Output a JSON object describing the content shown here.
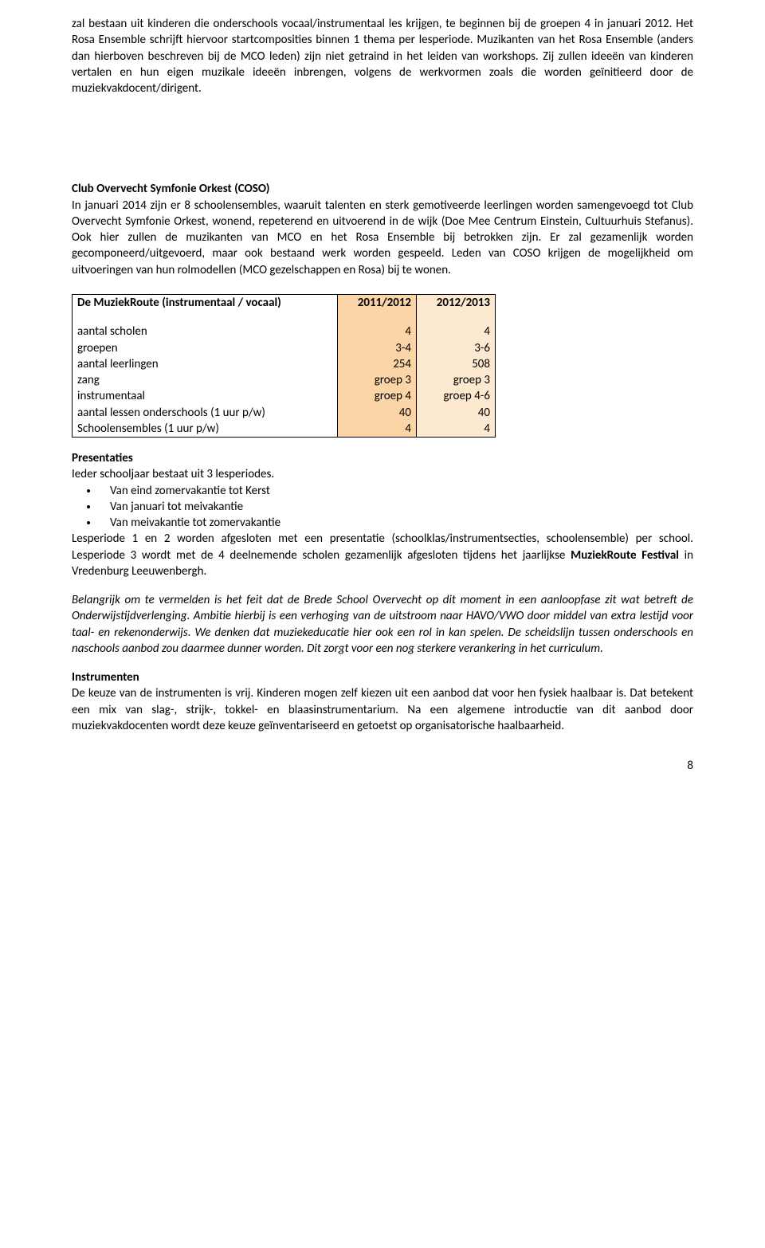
{
  "para_intro": "zal bestaan uit kinderen die onderschools vocaal/instrumentaal les krijgen, te beginnen bij de groepen 4 in januari 2012. Het Rosa Ensemble schrijft hiervoor startcomposities binnen 1 thema per lesperiode. Muzikanten van het Rosa Ensemble (anders dan hierboven beschreven bij de MCO leden) zijn niet getraind in het leiden van workshops. Zij zullen ideeën van kinderen vertalen en hun eigen muzikale ideeën inbrengen, volgens de werkvormen zoals die worden geïnitieerd door de muziekvakdocent/dirigent.",
  "coso_title": "Club Overvecht Symfonie Orkest (COSO)",
  "coso_body": "In januari 2014 zijn er 8 schoolensembles, waaruit talenten en sterk gemotiveerde leerlingen worden samengevoegd tot Club Overvecht Symfonie Orkest, wonend, repeterend en uitvoerend in de wijk (Doe Mee Centrum Einstein, Cultuurhuis Stefanus). Ook hier zullen de muzikanten van MCO en het Rosa Ensemble bij betrokken zijn. Er zal gezamenlijk worden gecomponeerd/uitgevoerd, maar ook bestaand werk worden gespeeld. Leden van COSO krijgen de mogelijkheid om uitvoeringen van hun rolmodellen (MCO gezelschappen en Rosa) bij te wonen.",
  "table": {
    "header_left": "De MuziekRoute (instrumentaal / vocaal)",
    "year1": "2011/2012",
    "year2": "2012/2013",
    "rows": [
      {
        "label": "aantal scholen",
        "y1": "4",
        "y2": "4"
      },
      {
        "label": "groepen",
        "y1": "3-4",
        "y2": "3-6"
      },
      {
        "label": "aantal leerlingen",
        "y1": "254",
        "y2": "508"
      },
      {
        "label": "zang",
        "y1": "groep 3",
        "y2": "groep 3"
      },
      {
        "label": "instrumentaal",
        "y1": "groep 4",
        "y2": "groep 4-6"
      },
      {
        "label": "aantal lessen onderschools (1 uur p/w)",
        "y1": "40",
        "y2": "40"
      },
      {
        "label": "Schoolensembles (1 uur p/w)",
        "y1": "4",
        "y2": "4"
      }
    ],
    "colors": {
      "y1_bg": "#fbd5a7",
      "y2_bg": "#fde9d0",
      "border": "#000000"
    }
  },
  "pres_title": "Presentaties",
  "pres_intro": "Ieder schooljaar bestaat uit 3 lesperiodes.",
  "pres_bullets": [
    "Van eind zomervakantie tot Kerst",
    "Van januari tot meivakantie",
    "Van meivakantie tot zomervakantie"
  ],
  "pres_after_1": "Lesperiode 1 en 2 worden afgesloten met een presentatie (schoolklas/instrumentsecties, schoolensemble) per school. Lesperiode 3 wordt met de 4 deelnemende scholen gezamenlijk afgesloten tijdens het jaarlijkse ",
  "pres_after_bold": "MuziekRoute Festival",
  "pres_after_2": " in Vredenburg Leeuwenbergh.",
  "important_note": "Belangrijk om te vermelden is het feit dat de Brede School Overvecht op dit moment in een aanloopfase zit wat betreft de Onderwijstijdverlenging. Ambitie hierbij is een verhoging van de uitstroom naar HAVO/VWO door middel van extra lestijd voor taal- en rekenonderwijs. We denken dat muziekeducatie hier ook een rol in kan spelen. De scheidslijn tussen onderschools en naschools aanbod zou daarmee dunner worden. Dit zorgt voor een nog sterkere verankering in het curriculum.",
  "instr_title": "Instrumenten",
  "instr_body": "De keuze van de instrumenten is vrij. Kinderen mogen zelf kiezen uit een aanbod dat voor hen fysiek haalbaar is. Dat betekent een mix van slag-, strijk-, tokkel- en blaasinstrumentarium. Na een algemene introductie van dit aanbod door muziekvakdocenten wordt deze keuze geïnventariseerd en getoetst op organisatorische haalbaarheid.",
  "page_number": "8"
}
